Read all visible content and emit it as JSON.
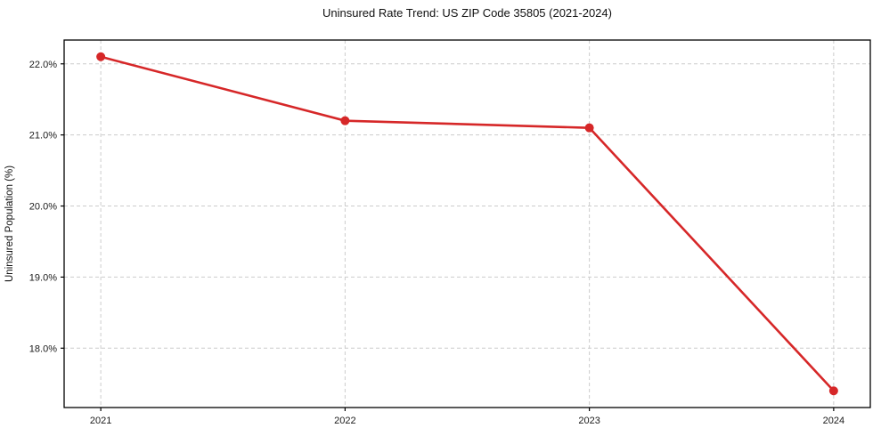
{
  "chart_data": {
    "type": "line",
    "title": "Uninsured Rate Trend: US ZIP Code 35805 (2021-2024)",
    "xlabel": "",
    "ylabel": "Uninsured Population (%)",
    "x": [
      2021,
      2022,
      2023,
      2024
    ],
    "series": [
      {
        "name": "Uninsured Population (%)",
        "values": [
          22.1,
          21.2,
          21.1,
          17.4
        ]
      }
    ],
    "xticks": {
      "values": [
        2021,
        2022,
        2023,
        2024
      ],
      "labels": [
        "2021",
        "2022",
        "2023",
        "2024"
      ]
    },
    "yticks": {
      "values": [
        18,
        19,
        20,
        21,
        22
      ],
      "labels": [
        "18.0%",
        "19.0%",
        "20.0%",
        "21.0%",
        "22.0%"
      ]
    },
    "xlim": [
      2020.85,
      2024.15
    ],
    "ylim": [
      17.165,
      22.335
    ],
    "grid": true,
    "grid_style": "dashed",
    "grid_color": "#cccccc",
    "line_color": "#d62728",
    "marker": "circle",
    "marker_color": "#d62728",
    "legend_position": "none"
  }
}
